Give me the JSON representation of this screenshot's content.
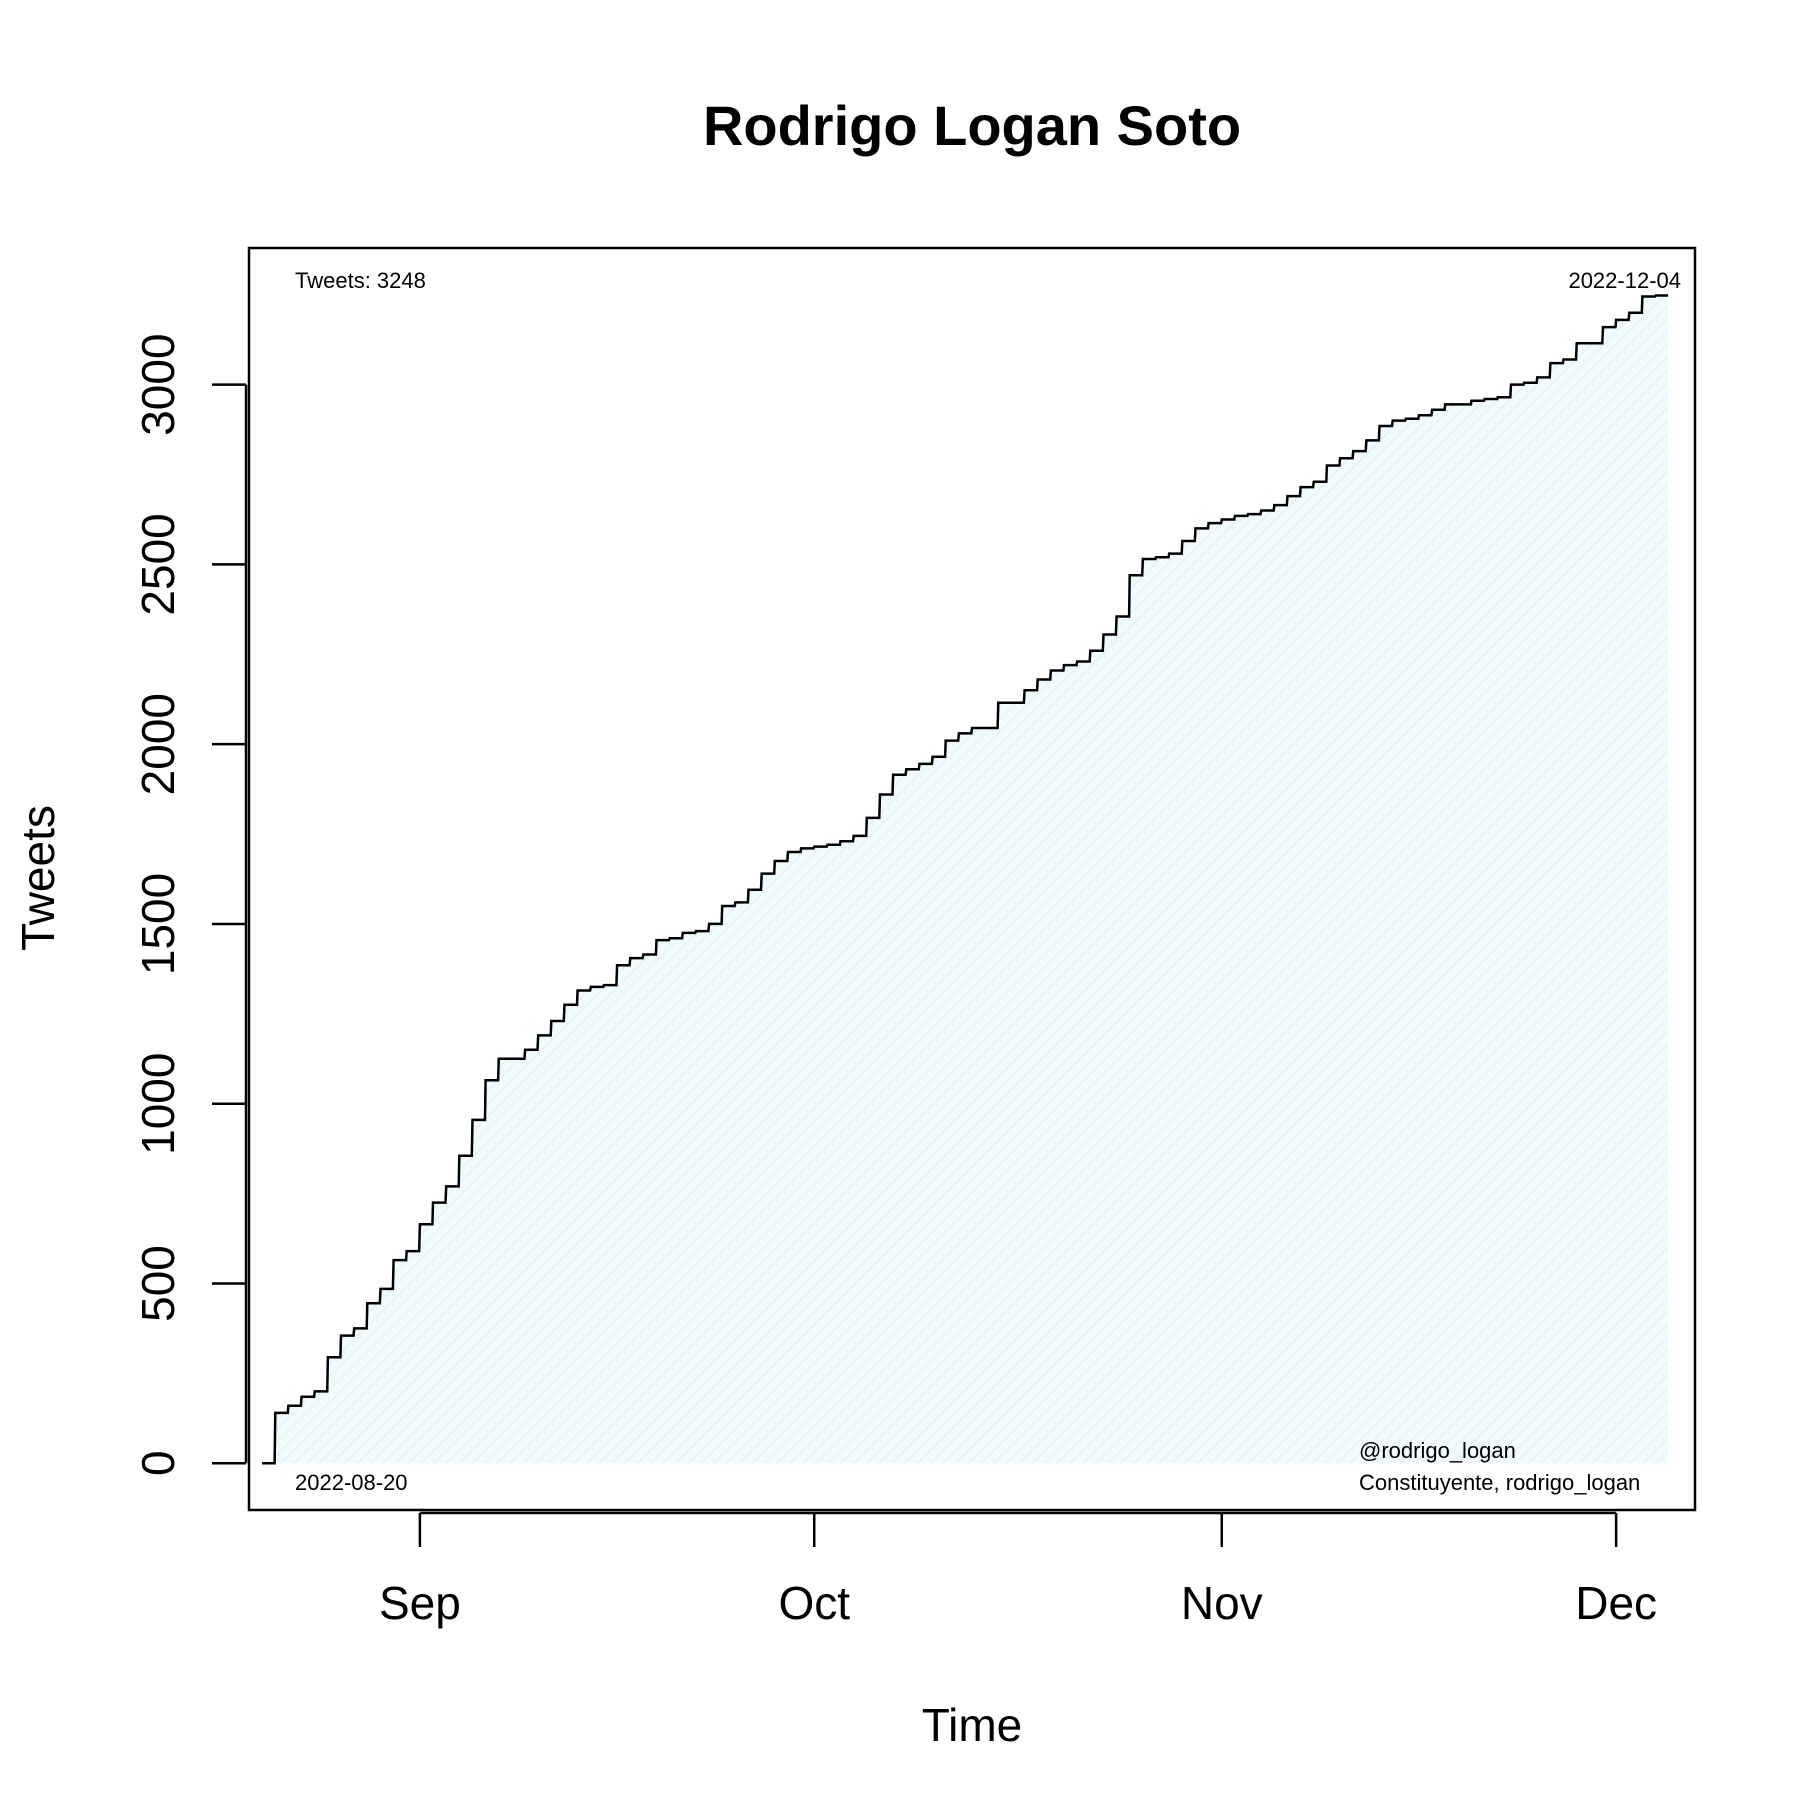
{
  "chart_data": {
    "type": "area",
    "step": true,
    "title": "Rodrigo Logan Soto",
    "xlabel": "Time",
    "ylabel": "Tweets",
    "xlim": [
      "2022-08-19",
      "2022-12-07"
    ],
    "ylim": [
      -130,
      3380
    ],
    "grid": false,
    "x_ticks": [
      {
        "date": "2022-09-01",
        "label": "Sep"
      },
      {
        "date": "2022-10-01",
        "label": "Oct"
      },
      {
        "date": "2022-11-01",
        "label": "Nov"
      },
      {
        "date": "2022-12-01",
        "label": "Dec"
      }
    ],
    "y_ticks": [
      {
        "value": 0,
        "label": "0"
      },
      {
        "value": 500,
        "label": "500"
      },
      {
        "value": 1000,
        "label": "1000"
      },
      {
        "value": 1500,
        "label": "1500"
      },
      {
        "value": 2000,
        "label": "2000"
      },
      {
        "value": 2500,
        "label": "2500"
      },
      {
        "value": 3000,
        "label": "3000"
      }
    ],
    "annotations": {
      "tweets_count": "Tweets: 3248",
      "end_date": "2022-12-04",
      "start_date": "2022-08-20",
      "handle": "@rodrigo_logan",
      "description": "Constituyente, rodrigo_logan"
    },
    "colors": {
      "line": "#000000",
      "fill": "#e4f4f8"
    },
    "series": [
      {
        "x": [
          "2022-08-20",
          "2022-08-21",
          "2022-08-22",
          "2022-08-23",
          "2022-08-24",
          "2022-08-25",
          "2022-08-26",
          "2022-08-27",
          "2022-08-28",
          "2022-08-29",
          "2022-08-30",
          "2022-08-31",
          "2022-09-01",
          "2022-09-02",
          "2022-09-03",
          "2022-09-04",
          "2022-09-05",
          "2022-09-06",
          "2022-09-07",
          "2022-09-08",
          "2022-09-09",
          "2022-09-10",
          "2022-09-11",
          "2022-09-12",
          "2022-09-13",
          "2022-09-14",
          "2022-09-15",
          "2022-09-16",
          "2022-09-17",
          "2022-09-18",
          "2022-09-19",
          "2022-09-20",
          "2022-09-21",
          "2022-09-22",
          "2022-09-23",
          "2022-09-24",
          "2022-09-25",
          "2022-09-26",
          "2022-09-27",
          "2022-09-28",
          "2022-09-29",
          "2022-09-30",
          "2022-10-01",
          "2022-10-02",
          "2022-10-03",
          "2022-10-04",
          "2022-10-05",
          "2022-10-06",
          "2022-10-07",
          "2022-10-08",
          "2022-10-09",
          "2022-10-10",
          "2022-10-11",
          "2022-10-12",
          "2022-10-13",
          "2022-10-14",
          "2022-10-15",
          "2022-10-16",
          "2022-10-17",
          "2022-10-18",
          "2022-10-19",
          "2022-10-20",
          "2022-10-21",
          "2022-10-22",
          "2022-10-23",
          "2022-10-24",
          "2022-10-25",
          "2022-10-26",
          "2022-10-27",
          "2022-10-28",
          "2022-10-29",
          "2022-10-30",
          "2022-10-31",
          "2022-11-01",
          "2022-11-02",
          "2022-11-03",
          "2022-11-04",
          "2022-11-05",
          "2022-11-06",
          "2022-11-07",
          "2022-11-08",
          "2022-11-09",
          "2022-11-10",
          "2022-11-11",
          "2022-11-12",
          "2022-11-13",
          "2022-11-14",
          "2022-11-15",
          "2022-11-16",
          "2022-11-17",
          "2022-11-18",
          "2022-11-19",
          "2022-11-20",
          "2022-11-21",
          "2022-11-22",
          "2022-11-23",
          "2022-11-24",
          "2022-11-25",
          "2022-11-26",
          "2022-11-27",
          "2022-11-28",
          "2022-11-29",
          "2022-11-30",
          "2022-12-01",
          "2022-12-02",
          "2022-12-03",
          "2022-12-04"
        ],
        "y": [
          0,
          140,
          160,
          185,
          200,
          295,
          355,
          375,
          445,
          485,
          565,
          590,
          665,
          725,
          770,
          855,
          955,
          1065,
          1125,
          1125,
          1150,
          1190,
          1230,
          1275,
          1315,
          1325,
          1330,
          1385,
          1405,
          1415,
          1455,
          1460,
          1475,
          1480,
          1500,
          1550,
          1560,
          1595,
          1640,
          1675,
          1700,
          1710,
          1715,
          1720,
          1730,
          1745,
          1795,
          1860,
          1915,
          1930,
          1945,
          1965,
          2010,
          2030,
          2045,
          2045,
          2115,
          2115,
          2150,
          2180,
          2205,
          2220,
          2230,
          2260,
          2305,
          2355,
          2470,
          2515,
          2520,
          2530,
          2565,
          2600,
          2615,
          2625,
          2635,
          2640,
          2650,
          2665,
          2690,
          2715,
          2730,
          2775,
          2795,
          2815,
          2845,
          2885,
          2900,
          2905,
          2915,
          2930,
          2945,
          2945,
          2955,
          2960,
          2965,
          3000,
          3005,
          3020,
          3060,
          3070,
          3115,
          3115,
          3160,
          3180,
          3200,
          3245,
          3248
        ]
      }
    ]
  }
}
